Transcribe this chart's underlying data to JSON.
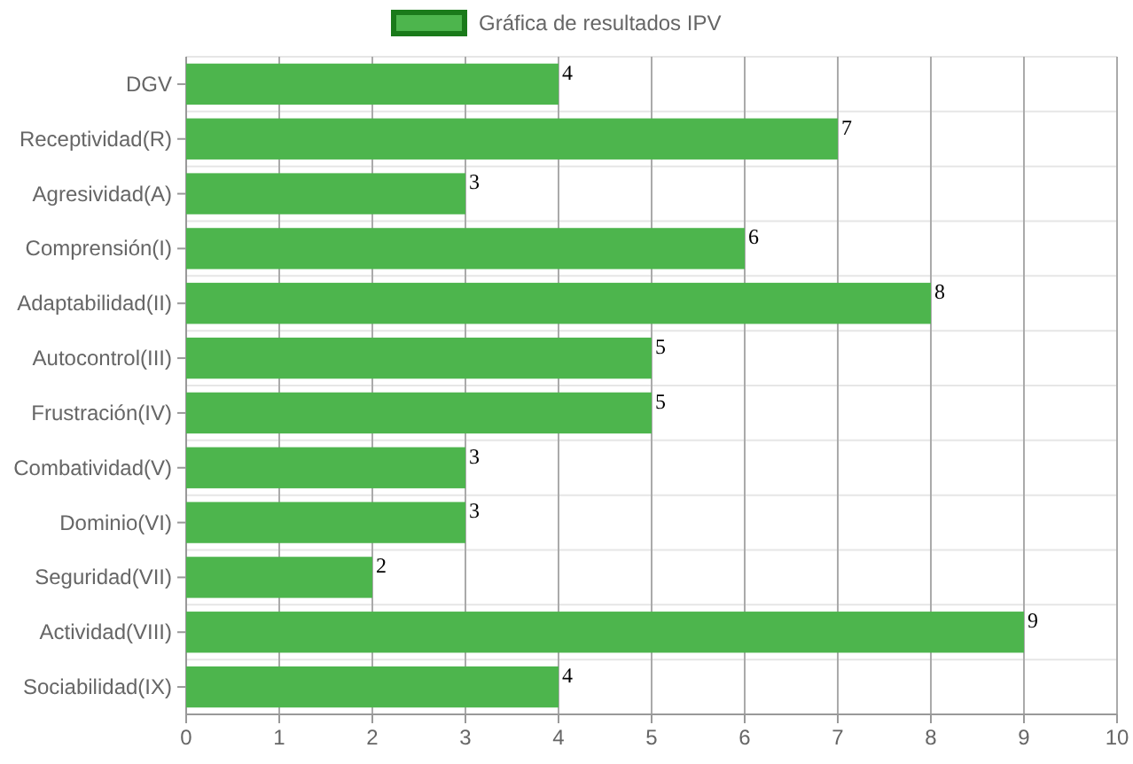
{
  "chart_data": {
    "type": "bar",
    "orientation": "horizontal",
    "categories": [
      "DGV",
      "Receptividad(R)",
      "Agresividad(A)",
      "Comprensión(I)",
      "Adaptabilidad(II)",
      "Autocontrol(III)",
      "Frustración(IV)",
      "Combatividad(V)",
      "Dominio(VI)",
      "Seguridad(VII)",
      "Actividad(VIII)",
      "Sociabilidad(IX)"
    ],
    "series": [
      {
        "name": "Gráfica de resultados IPV",
        "color": "#4db54d",
        "values": [
          4,
          7,
          3,
          6,
          8,
          5,
          5,
          3,
          3,
          2,
          9,
          4
        ]
      }
    ],
    "xlim": [
      0,
      10
    ],
    "xticks": [
      0,
      1,
      2,
      3,
      4,
      5,
      6,
      7,
      8,
      9,
      10
    ],
    "grid": true,
    "legend": "top",
    "data_labels": true
  }
}
